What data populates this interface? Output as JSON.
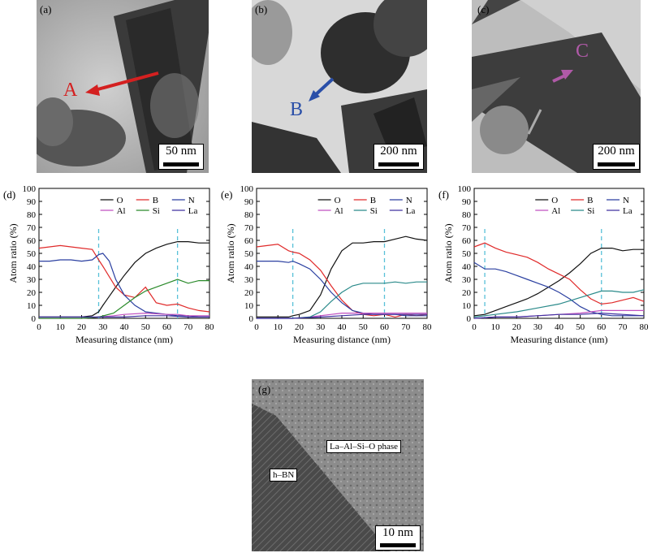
{
  "micrographs": {
    "a": {
      "label": "(a)",
      "marker": "A",
      "scale": "50 nm",
      "marker_color": "#d42020"
    },
    "b": {
      "label": "(b)",
      "marker": "B",
      "scale": "200 nm",
      "marker_color": "#2a4fa8"
    },
    "c": {
      "label": "(c)",
      "marker": "C",
      "scale": "200 nm",
      "marker_color": "#b05aa8"
    },
    "g": {
      "label": "(g)",
      "scale": "10 nm",
      "phase1": "La–Al–Si–O phase",
      "phase2": "h–BN"
    }
  },
  "chart_data": [
    {
      "type": "line",
      "panel": "(d)",
      "xlabel": "Measuring distance (nm)",
      "ylabel": "Atom ratio (%)",
      "xlim": [
        0,
        80
      ],
      "ylim": [
        0,
        100
      ],
      "xticks": [
        0,
        10,
        20,
        30,
        40,
        50,
        60,
        70,
        80
      ],
      "yticks": [
        0,
        10,
        20,
        30,
        40,
        50,
        60,
        70,
        80,
        90,
        100
      ],
      "vlines": [
        28,
        65
      ],
      "legend_position": "top",
      "series": [
        {
          "name": "O",
          "color": "#111111",
          "x": [
            0,
            5,
            10,
            15,
            20,
            25,
            28,
            30,
            33,
            36,
            40,
            45,
            50,
            55,
            60,
            65,
            70,
            75,
            80
          ],
          "y": [
            1,
            1,
            1,
            1,
            1,
            2,
            5,
            10,
            17,
            24,
            33,
            43,
            50,
            54,
            57,
            59,
            59,
            58,
            58
          ]
        },
        {
          "name": "B",
          "color": "#e02a2a",
          "x": [
            0,
            5,
            10,
            15,
            20,
            25,
            28,
            30,
            33,
            36,
            40,
            45,
            50,
            55,
            60,
            65,
            70,
            75,
            80
          ],
          "y": [
            54,
            55,
            56,
            55,
            54,
            53,
            45,
            40,
            32,
            24,
            18,
            16,
            24,
            12,
            10,
            11,
            8,
            6,
            5
          ]
        },
        {
          "name": "N",
          "color": "#2a3fa0",
          "x": [
            0,
            5,
            10,
            15,
            20,
            25,
            28,
            30,
            33,
            36,
            40,
            45,
            50,
            55,
            60,
            65,
            70,
            75,
            80
          ],
          "y": [
            44,
            44,
            45,
            45,
            44,
            45,
            49,
            50,
            44,
            30,
            18,
            10,
            5,
            4,
            3,
            2,
            2,
            1,
            1
          ]
        },
        {
          "name": "Al",
          "color": "#c050c0",
          "x": [
            0,
            10,
            20,
            28,
            35,
            40,
            50,
            60,
            65,
            70,
            80
          ],
          "y": [
            0,
            0,
            0,
            1,
            2,
            3,
            4,
            3,
            3,
            2,
            2
          ]
        },
        {
          "name": "Si",
          "color": "#2a8a2a",
          "x": [
            0,
            10,
            20,
            28,
            35,
            40,
            45,
            50,
            55,
            60,
            65,
            70,
            75,
            80
          ],
          "y": [
            0,
            0,
            0,
            1,
            4,
            10,
            16,
            21,
            24,
            27,
            30,
            27,
            29,
            29
          ]
        },
        {
          "name": "La",
          "color": "#4030a0",
          "x": [
            0,
            10,
            20,
            28,
            35,
            40,
            50,
            60,
            70,
            80
          ],
          "y": [
            1,
            1,
            1,
            1,
            1,
            1,
            2,
            2,
            1,
            1
          ]
        }
      ]
    },
    {
      "type": "line",
      "panel": "(e)",
      "xlabel": "Measuring distance (nm)",
      "ylabel": "Atom ratio (%)",
      "xlim": [
        0,
        80
      ],
      "ylim": [
        0,
        100
      ],
      "xticks": [
        0,
        10,
        20,
        30,
        40,
        50,
        60,
        70,
        80
      ],
      "yticks": [
        0,
        10,
        20,
        30,
        40,
        50,
        60,
        70,
        80,
        90,
        100
      ],
      "vlines": [
        17,
        60
      ],
      "legend_position": "top",
      "series": [
        {
          "name": "O",
          "color": "#111111",
          "x": [
            0,
            5,
            10,
            15,
            17,
            20,
            25,
            30,
            35,
            40,
            45,
            50,
            55,
            60,
            65,
            70,
            75,
            80
          ],
          "y": [
            1,
            1,
            1,
            1,
            2,
            3,
            6,
            18,
            38,
            52,
            58,
            58,
            59,
            59,
            61,
            63,
            61,
            60
          ]
        },
        {
          "name": "B",
          "color": "#e02a2a",
          "x": [
            0,
            5,
            10,
            15,
            17,
            20,
            25,
            30,
            35,
            40,
            45,
            50,
            55,
            60,
            65,
            70,
            75,
            80
          ],
          "y": [
            55,
            56,
            57,
            52,
            51,
            50,
            45,
            37,
            25,
            14,
            6,
            3,
            2,
            3,
            1,
            3,
            2,
            3
          ]
        },
        {
          "name": "N",
          "color": "#2a3fa0",
          "x": [
            0,
            5,
            10,
            15,
            17,
            20,
            25,
            30,
            35,
            40,
            45,
            50,
            55,
            60,
            65,
            70,
            75,
            80
          ],
          "y": [
            44,
            44,
            44,
            43,
            44,
            42,
            38,
            30,
            20,
            12,
            6,
            4,
            3,
            3,
            3,
            2,
            2,
            2
          ]
        },
        {
          "name": "Al",
          "color": "#c050c0",
          "x": [
            0,
            10,
            17,
            25,
            35,
            40,
            50,
            60,
            70,
            80
          ],
          "y": [
            0,
            0,
            0,
            1,
            3,
            4,
            4,
            4,
            4,
            4
          ]
        },
        {
          "name": "Si",
          "color": "#2a8a8a",
          "x": [
            0,
            10,
            17,
            25,
            30,
            35,
            40,
            45,
            50,
            55,
            60,
            65,
            70,
            75,
            80
          ],
          "y": [
            0,
            0,
            0,
            1,
            5,
            13,
            20,
            25,
            27,
            27,
            27,
            28,
            27,
            28,
            28
          ]
        },
        {
          "name": "La",
          "color": "#4030a0",
          "x": [
            0,
            10,
            17,
            30,
            40,
            50,
            60,
            70,
            80
          ],
          "y": [
            0,
            0,
            0,
            1,
            2,
            3,
            3,
            3,
            3
          ]
        }
      ]
    },
    {
      "type": "line",
      "panel": "(f)",
      "xlabel": "Measuring distance (nm)",
      "ylabel": "Atom ratio (%)",
      "xlim": [
        0,
        80
      ],
      "ylim": [
        0,
        100
      ],
      "xticks": [
        0,
        10,
        20,
        30,
        40,
        50,
        60,
        70,
        80
      ],
      "yticks": [
        0,
        10,
        20,
        30,
        40,
        50,
        60,
        70,
        80,
        90,
        100
      ],
      "vlines": [
        5,
        60
      ],
      "legend_position": "top",
      "series": [
        {
          "name": "O",
          "color": "#111111",
          "x": [
            0,
            5,
            10,
            15,
            20,
            25,
            30,
            35,
            40,
            45,
            50,
            55,
            60,
            65,
            70,
            75,
            80
          ],
          "y": [
            2,
            3,
            6,
            9,
            12,
            15,
            19,
            24,
            29,
            35,
            42,
            50,
            54,
            54,
            52,
            53,
            53
          ]
        },
        {
          "name": "B",
          "color": "#e02a2a",
          "x": [
            0,
            5,
            10,
            15,
            20,
            25,
            30,
            35,
            40,
            45,
            50,
            55,
            60,
            65,
            70,
            75,
            80
          ],
          "y": [
            55,
            58,
            54,
            51,
            49,
            47,
            43,
            38,
            34,
            30,
            22,
            15,
            11,
            12,
            14,
            16,
            13
          ]
        },
        {
          "name": "N",
          "color": "#2a3fa0",
          "x": [
            0,
            5,
            10,
            15,
            20,
            25,
            30,
            35,
            40,
            45,
            50,
            55,
            60,
            65,
            70,
            75,
            80
          ],
          "y": [
            43,
            38,
            38,
            36,
            33,
            30,
            27,
            24,
            20,
            15,
            9,
            5,
            3,
            2,
            2,
            2,
            2
          ]
        },
        {
          "name": "Al",
          "color": "#c050c0",
          "x": [
            0,
            10,
            20,
            30,
            40,
            50,
            60,
            70,
            80
          ],
          "y": [
            0,
            1,
            1,
            2,
            3,
            4,
            6,
            6,
            6
          ]
        },
        {
          "name": "Si",
          "color": "#2a8a8a",
          "x": [
            0,
            5,
            10,
            20,
            30,
            40,
            50,
            60,
            65,
            70,
            75,
            80
          ],
          "y": [
            1,
            2,
            3,
            5,
            8,
            11,
            16,
            21,
            21,
            20,
            20,
            22
          ]
        },
        {
          "name": "La",
          "color": "#4030a0",
          "x": [
            0,
            10,
            20,
            30,
            40,
            50,
            60,
            70,
            80
          ],
          "y": [
            0,
            1,
            1,
            2,
            3,
            3,
            4,
            3,
            2
          ]
        }
      ]
    }
  ]
}
